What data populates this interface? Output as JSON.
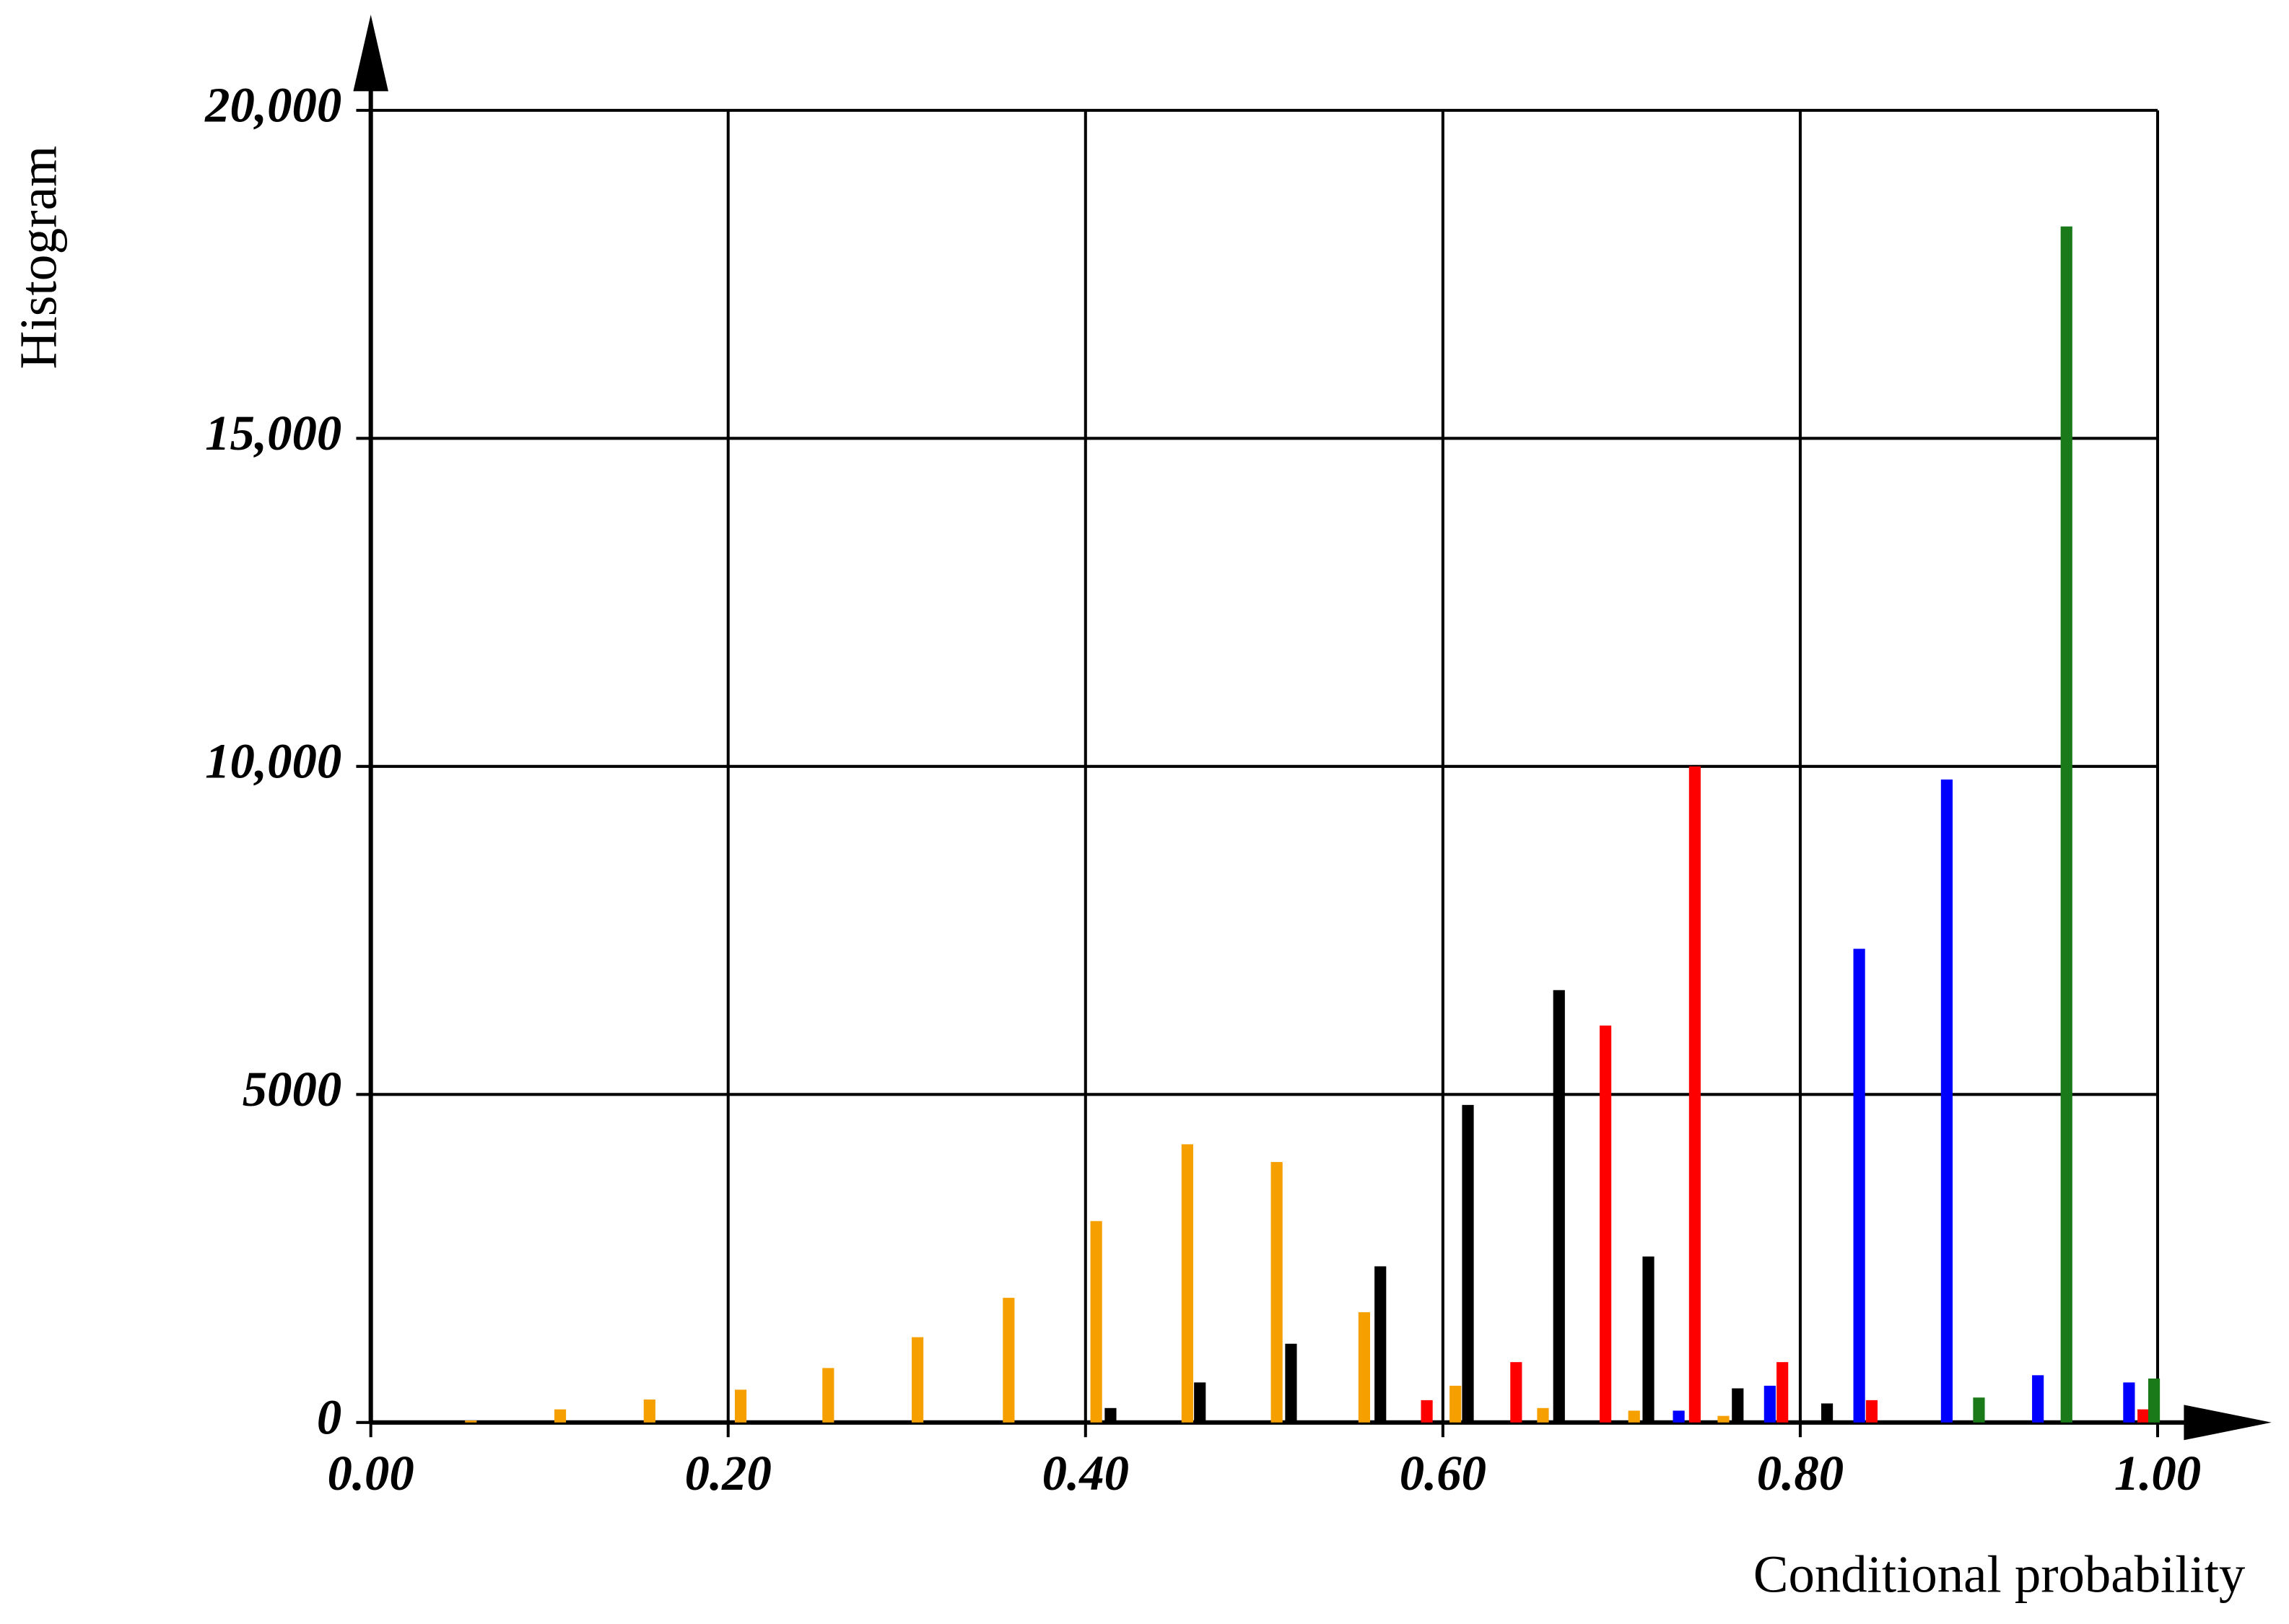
{
  "chart_data": {
    "type": "bar",
    "x_label": "Conditional probability",
    "y_label": "Histogram",
    "xlim": [
      0,
      1
    ],
    "ylim": [
      0,
      20000
    ],
    "xticks": [
      {
        "value": 0,
        "label": "0.00"
      },
      {
        "value": 0.2,
        "label": "0.20"
      },
      {
        "value": 0.4,
        "label": "0.40"
      },
      {
        "value": 0.6,
        "label": "0.60"
      },
      {
        "value": 0.8,
        "label": "0.80"
      },
      {
        "value": 1,
        "label": "1.00"
      }
    ],
    "yticks": [
      0,
      5000,
      {
        "value": 10000,
        "label": "10,000"
      },
      {
        "value": 15000,
        "label": "15,000"
      },
      {
        "value": 20000,
        "label": "20,000"
      }
    ],
    "grid": true,
    "series": [
      {
        "color": "#f5a000",
        "x": [
          0.056,
          0.106,
          0.156,
          0.207,
          0.256,
          0.306,
          0.357,
          0.406,
          0.457,
          0.507,
          0.556,
          0.607,
          0.656,
          0.707,
          0.757
        ],
        "values": [
          30,
          200,
          350,
          500,
          830,
          1300,
          1900,
          3070,
          4240,
          3970,
          1680,
          560,
          220,
          180,
          100
        ]
      },
      {
        "color": "#000000",
        "x": [
          0.414,
          0.464,
          0.515,
          0.565,
          0.614,
          0.665,
          0.715,
          0.765,
          0.815
        ],
        "values": [
          220,
          610,
          1200,
          2380,
          4840,
          6590,
          2530,
          520,
          290
        ]
      },
      {
        "color": "#ff0000",
        "x": [
          0.591,
          0.641,
          0.691,
          0.741,
          0.79,
          0.84,
          0.992
        ],
        "values": [
          340,
          920,
          6050,
          10000,
          920,
          340,
          200
        ]
      },
      {
        "color": "#0000ff",
        "x": [
          0.732,
          0.783,
          0.833,
          0.882,
          0.933,
          0.984
        ],
        "values": [
          180,
          560,
          7220,
          9800,
          720,
          610
        ]
      },
      {
        "color": "#1a7a1a",
        "x": [
          0.9,
          0.949,
          0.998
        ],
        "values": [
          380,
          18230,
          670
        ]
      }
    ]
  }
}
